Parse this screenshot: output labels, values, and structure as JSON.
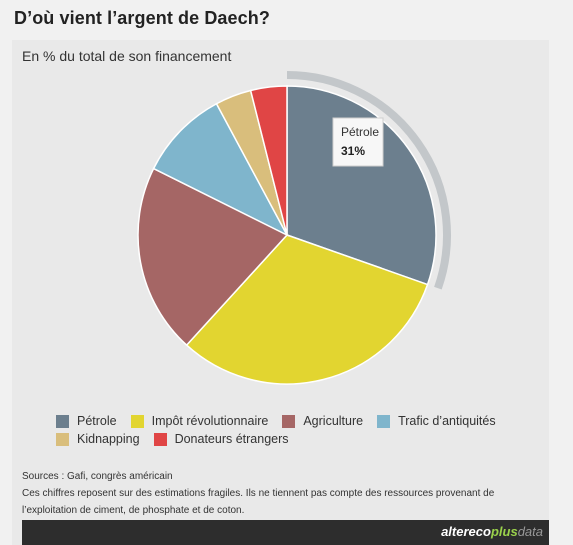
{
  "title": "D’où vient l’argent de Daech?",
  "subtitle": "En % du total de son financement",
  "chart_data": {
    "type": "pie",
    "unit": "%",
    "slices": [
      {
        "label": "Pétrole",
        "value": 31,
        "color": "#6c7f8e"
      },
      {
        "label": "Impôt révolutionnaire",
        "value": 32,
        "color": "#e2d530"
      },
      {
        "label": "Agriculture",
        "value": 21,
        "color": "#a56665"
      },
      {
        "label": "Trafic d’antiquités",
        "value": 10,
        "color": "#7fb5cc"
      },
      {
        "label": "Kidnapping",
        "value": 4,
        "color": "#d9be7c"
      },
      {
        "label": "Donateurs étrangers",
        "value": 4,
        "color": "#e04545"
      }
    ],
    "highlighted": "Pétrole",
    "tooltip": {
      "label": "Pétrole",
      "value_text": "31%"
    },
    "legend_position": "bottom"
  },
  "sources": {
    "line1": "Sources : Gafi, congrès américain",
    "line2": "Ces chiffres reposent sur des estimations fragiles. Ils ne tiennent pas compte des ressources provenant de",
    "line3": "l’exploitation de ciment, de phosphate et de coton."
  },
  "brand": {
    "part1": "altereco",
    "part2": "plus",
    "part3": "data"
  }
}
